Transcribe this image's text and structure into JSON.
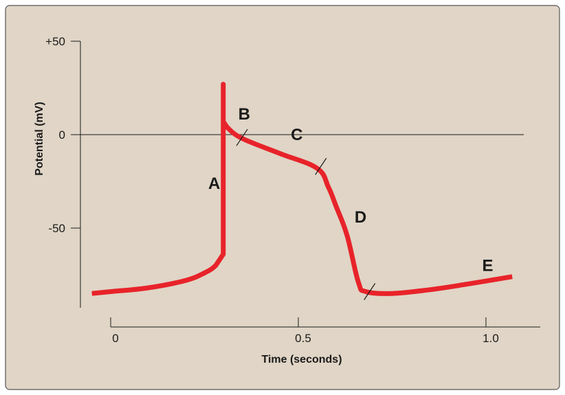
{
  "chart_data": {
    "type": "line",
    "xlabel": "Time (seconds)",
    "ylabel": "Potential (mV)",
    "x_ticks": [
      {
        "value": 0,
        "label": "0"
      },
      {
        "value": 0.5,
        "label": "0.5"
      },
      {
        "value": 1.0,
        "label": "1.0"
      }
    ],
    "y_ticks": [
      {
        "value": 50,
        "label": "+50"
      },
      {
        "value": 0,
        "label": "0"
      },
      {
        "value": -50,
        "label": "-50"
      }
    ],
    "xlim": [
      -0.06,
      1.12
    ],
    "ylim": [
      -98,
      58
    ],
    "zero_reference_line": true,
    "grid": false,
    "legend": "none",
    "colors": {
      "background": "#e0d5c6",
      "frame": "#555555",
      "line": "#e8232a",
      "axis": "#1a1a1a"
    },
    "series": [
      {
        "x": [
          -0.05,
          0.0,
          0.1,
          0.2,
          0.25,
          0.28,
          0.3,
          0.3,
          0.3,
          0.31,
          0.35,
          0.45,
          0.55,
          0.58,
          0.6,
          0.63,
          0.66,
          0.68,
          0.75,
          0.85,
          0.95,
          1.07
        ],
        "y": [
          -85,
          -84,
          -82,
          -78,
          -74,
          -70,
          -64,
          27,
          7,
          4,
          -2,
          -10,
          -18,
          -28,
          -38,
          -54,
          -79,
          -84,
          -85,
          -83,
          -80,
          -76
        ]
      }
    ],
    "annotations": [
      {
        "text": "A",
        "x": 0.26,
        "y": -29
      },
      {
        "text": "B",
        "x": 0.34,
        "y": 8
      },
      {
        "text": "C",
        "x": 0.48,
        "y": -3
      },
      {
        "text": "D",
        "x": 0.65,
        "y": -47
      },
      {
        "text": "E",
        "x": 0.99,
        "y": -73
      }
    ],
    "phase_boundary_marks": [
      {
        "x": 0.35,
        "y": -1.5
      },
      {
        "x": 0.56,
        "y": -17
      },
      {
        "x": 0.69,
        "y": -84
      }
    ]
  }
}
